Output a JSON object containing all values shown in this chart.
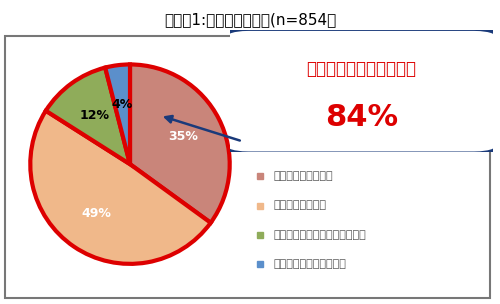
{
  "title": "グラフ1:蓄穏疲労の実態(n=854）",
  "slices": [
    35,
    49,
    12,
    4
  ],
  "pct_labels": [
    "35%",
    "49%",
    "12%",
    "4%"
  ],
  "colors": [
    "#c9857a",
    "#f0b88a",
    "#8fac5a",
    "#5b8fcb"
  ],
  "legend_labels": [
    "とても蓄穏している",
    "やや蓄穏している",
    "あまり蓄穏していると思わない",
    "まったく蓄穏していない"
  ],
  "callout_line1": "疲労の蓄穏を感じている",
  "callout_line2": "84%",
  "pie_edge_color": "#dd0000",
  "pie_edge_width": 3.0,
  "background_color": "#ffffff",
  "border_color": "#777777",
  "title_fontsize": 11,
  "label_fontsize": 9,
  "legend_fontsize": 8,
  "callout_fontsize": 12,
  "callout_pct_fontsize": 22,
  "callout_color": "#dd0000",
  "callout_box_color": "#1a3a7a",
  "legend_dot_colors": [
    "#c9857a",
    "#f0b88a",
    "#8fac5a",
    "#5b8fcb"
  ]
}
